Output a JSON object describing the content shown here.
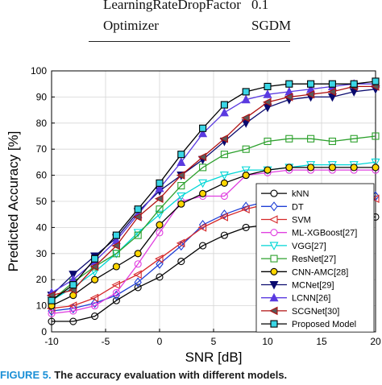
{
  "table": {
    "rows": [
      {
        "param": "LearningRateDropFactor",
        "value": "0.1"
      },
      {
        "param": "Optimizer",
        "value": "SGDM"
      }
    ]
  },
  "chart_data": {
    "type": "line",
    "title": "",
    "xlabel": "SNR [dB]",
    "ylabel": "Predicted Accuracy [%]",
    "xlim": [
      -10,
      20
    ],
    "ylim": [
      0,
      100
    ],
    "xticks": [
      -10,
      -5,
      0,
      5,
      10,
      15,
      20
    ],
    "yticks": [
      0,
      10,
      20,
      30,
      40,
      50,
      60,
      70,
      80,
      90,
      100
    ],
    "xtick_labels": [
      "-10",
      "-5",
      "0",
      "5",
      "10",
      "15",
      "20"
    ],
    "ytick_labels": [
      "0",
      "10",
      "20",
      "30",
      "40",
      "50",
      "60",
      "70",
      "80",
      "90",
      "100"
    ],
    "grid": true,
    "legend_position": "bottom-right",
    "x": [
      -10,
      -8,
      -6,
      -4,
      -2,
      0,
      2,
      4,
      6,
      8,
      10,
      12,
      14,
      16,
      18,
      20
    ],
    "series": [
      {
        "name": "kNN",
        "color": "#000000",
        "marker": "circle",
        "fill": "none",
        "values": [
          4,
          4,
          6,
          12,
          17,
          21,
          27,
          33,
          37,
          40,
          41,
          43,
          44,
          44,
          44,
          44
        ]
      },
      {
        "name": "DT",
        "color": "#1f3fd6",
        "marker": "diamond",
        "fill": "none",
        "values": [
          8,
          9,
          11,
          14,
          19,
          26,
          33,
          41,
          45,
          48,
          50,
          51,
          51,
          52,
          52,
          52
        ]
      },
      {
        "name": "SVM",
        "color": "#d62728",
        "marker": "triangle-left",
        "fill": "none",
        "values": [
          9,
          10,
          13,
          18,
          22,
          28,
          34,
          40,
          44,
          47,
          49,
          50,
          51,
          51,
          51,
          51
        ]
      },
      {
        "name": "ML-XGBoost[27]",
        "color": "#e040e0",
        "marker": "circle",
        "fill": "none",
        "values": [
          7,
          8,
          10,
          15,
          26,
          38,
          50,
          52,
          52,
          60,
          61,
          62,
          62,
          62,
          62,
          62
        ]
      },
      {
        "name": "VGG[27]",
        "color": "#00d6d6",
        "marker": "triangle-down",
        "fill": "none",
        "values": [
          12,
          17,
          23,
          30,
          38,
          45,
          52,
          57,
          60,
          62,
          62,
          63,
          64,
          64,
          64,
          65
        ]
      },
      {
        "name": "ResNet[27]",
        "color": "#2ca02c",
        "marker": "square",
        "fill": "none",
        "values": [
          12,
          19,
          25,
          30,
          37,
          47,
          56,
          63,
          68,
          70,
          73,
          74,
          74,
          73,
          74,
          75
        ]
      },
      {
        "name": "CNN-AMC[28]",
        "color": "#000000",
        "marker": "circle",
        "fill": "#ffd700",
        "values": [
          10,
          14,
          20,
          25,
          30,
          41,
          49,
          53,
          57,
          60,
          62,
          63,
          63,
          63,
          63,
          63
        ]
      },
      {
        "name": "MCNet[29]",
        "color": "#0a0a6e",
        "marker": "triangle-down",
        "fill": "#0a0a6e",
        "values": [
          14,
          22,
          29,
          36,
          46,
          54,
          60,
          66,
          73,
          80,
          86,
          89,
          90,
          90,
          92,
          93
        ]
      },
      {
        "name": "LCNN[26]",
        "color": "#5a3ae0",
        "marker": "triangle-up",
        "fill": "#5a3ae0",
        "values": [
          15,
          20,
          27,
          35,
          45,
          55,
          65,
          76,
          84,
          89,
          91,
          92,
          93,
          94,
          95,
          95
        ]
      },
      {
        "name": "SCGNet[30]",
        "color": "#b01010",
        "marker": "triangle-left",
        "fill": "#5a5a5a",
        "values": [
          14,
          16,
          25,
          33,
          44,
          51,
          60,
          67,
          74,
          82,
          88,
          90,
          91,
          92,
          94,
          94
        ]
      },
      {
        "name": "Proposed Model",
        "color": "#000000",
        "marker": "square",
        "fill": "#3ad6e6",
        "values": [
          12,
          18,
          28,
          37,
          47,
          57,
          68,
          78,
          87,
          92,
          94,
          95,
          95,
          95,
          95,
          96
        ]
      }
    ]
  },
  "caption": {
    "label": "FIGURE 5.",
    "text": "The accuracy evaluation with different models."
  }
}
